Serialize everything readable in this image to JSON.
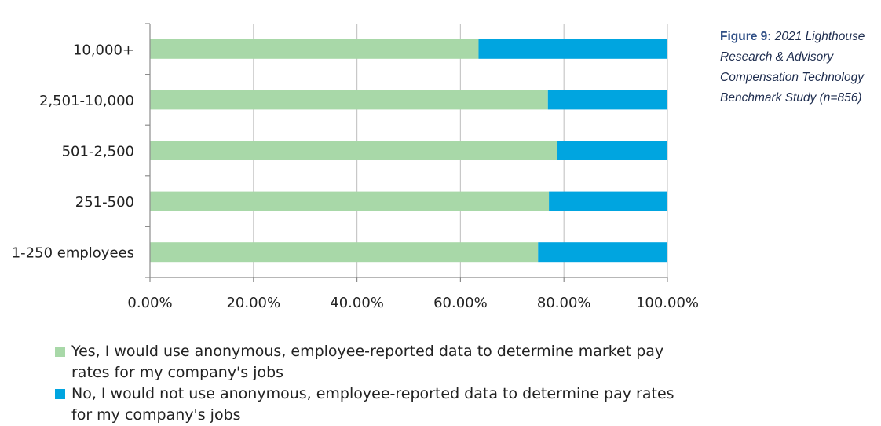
{
  "chart_data": {
    "type": "bar",
    "orientation": "horizontal",
    "stacked": true,
    "categories": [
      "10,000+",
      "2,501-10,000",
      "501-2,500",
      "251-500",
      "1-250 employees"
    ],
    "series": [
      {
        "name": "Yes, I would use anonymous, employee-reported data to determine market pay rates for my company's jobs",
        "values": [
          63.5,
          76.9,
          78.7,
          77.1,
          75.0
        ]
      },
      {
        "name": "No, I would not use anonymous, employee-reported data to determine pay rates for my company's jobs",
        "values": [
          36.5,
          23.1,
          21.3,
          22.9,
          25.0
        ]
      }
    ],
    "colors": [
      "#a8d8a8",
      "#00a5e0"
    ],
    "xlim": [
      0,
      100
    ],
    "xticks": [
      "0.00%",
      "20.00%",
      "40.00%",
      "60.00%",
      "80.00%",
      "100.00%"
    ],
    "grid": true,
    "legend_position": "bottom"
  },
  "caption": {
    "figure_label": "Figure 9:",
    "text": "2021 Lighthouse Research & Advisory Compensation Technology Benchmark Study (n=856)"
  }
}
